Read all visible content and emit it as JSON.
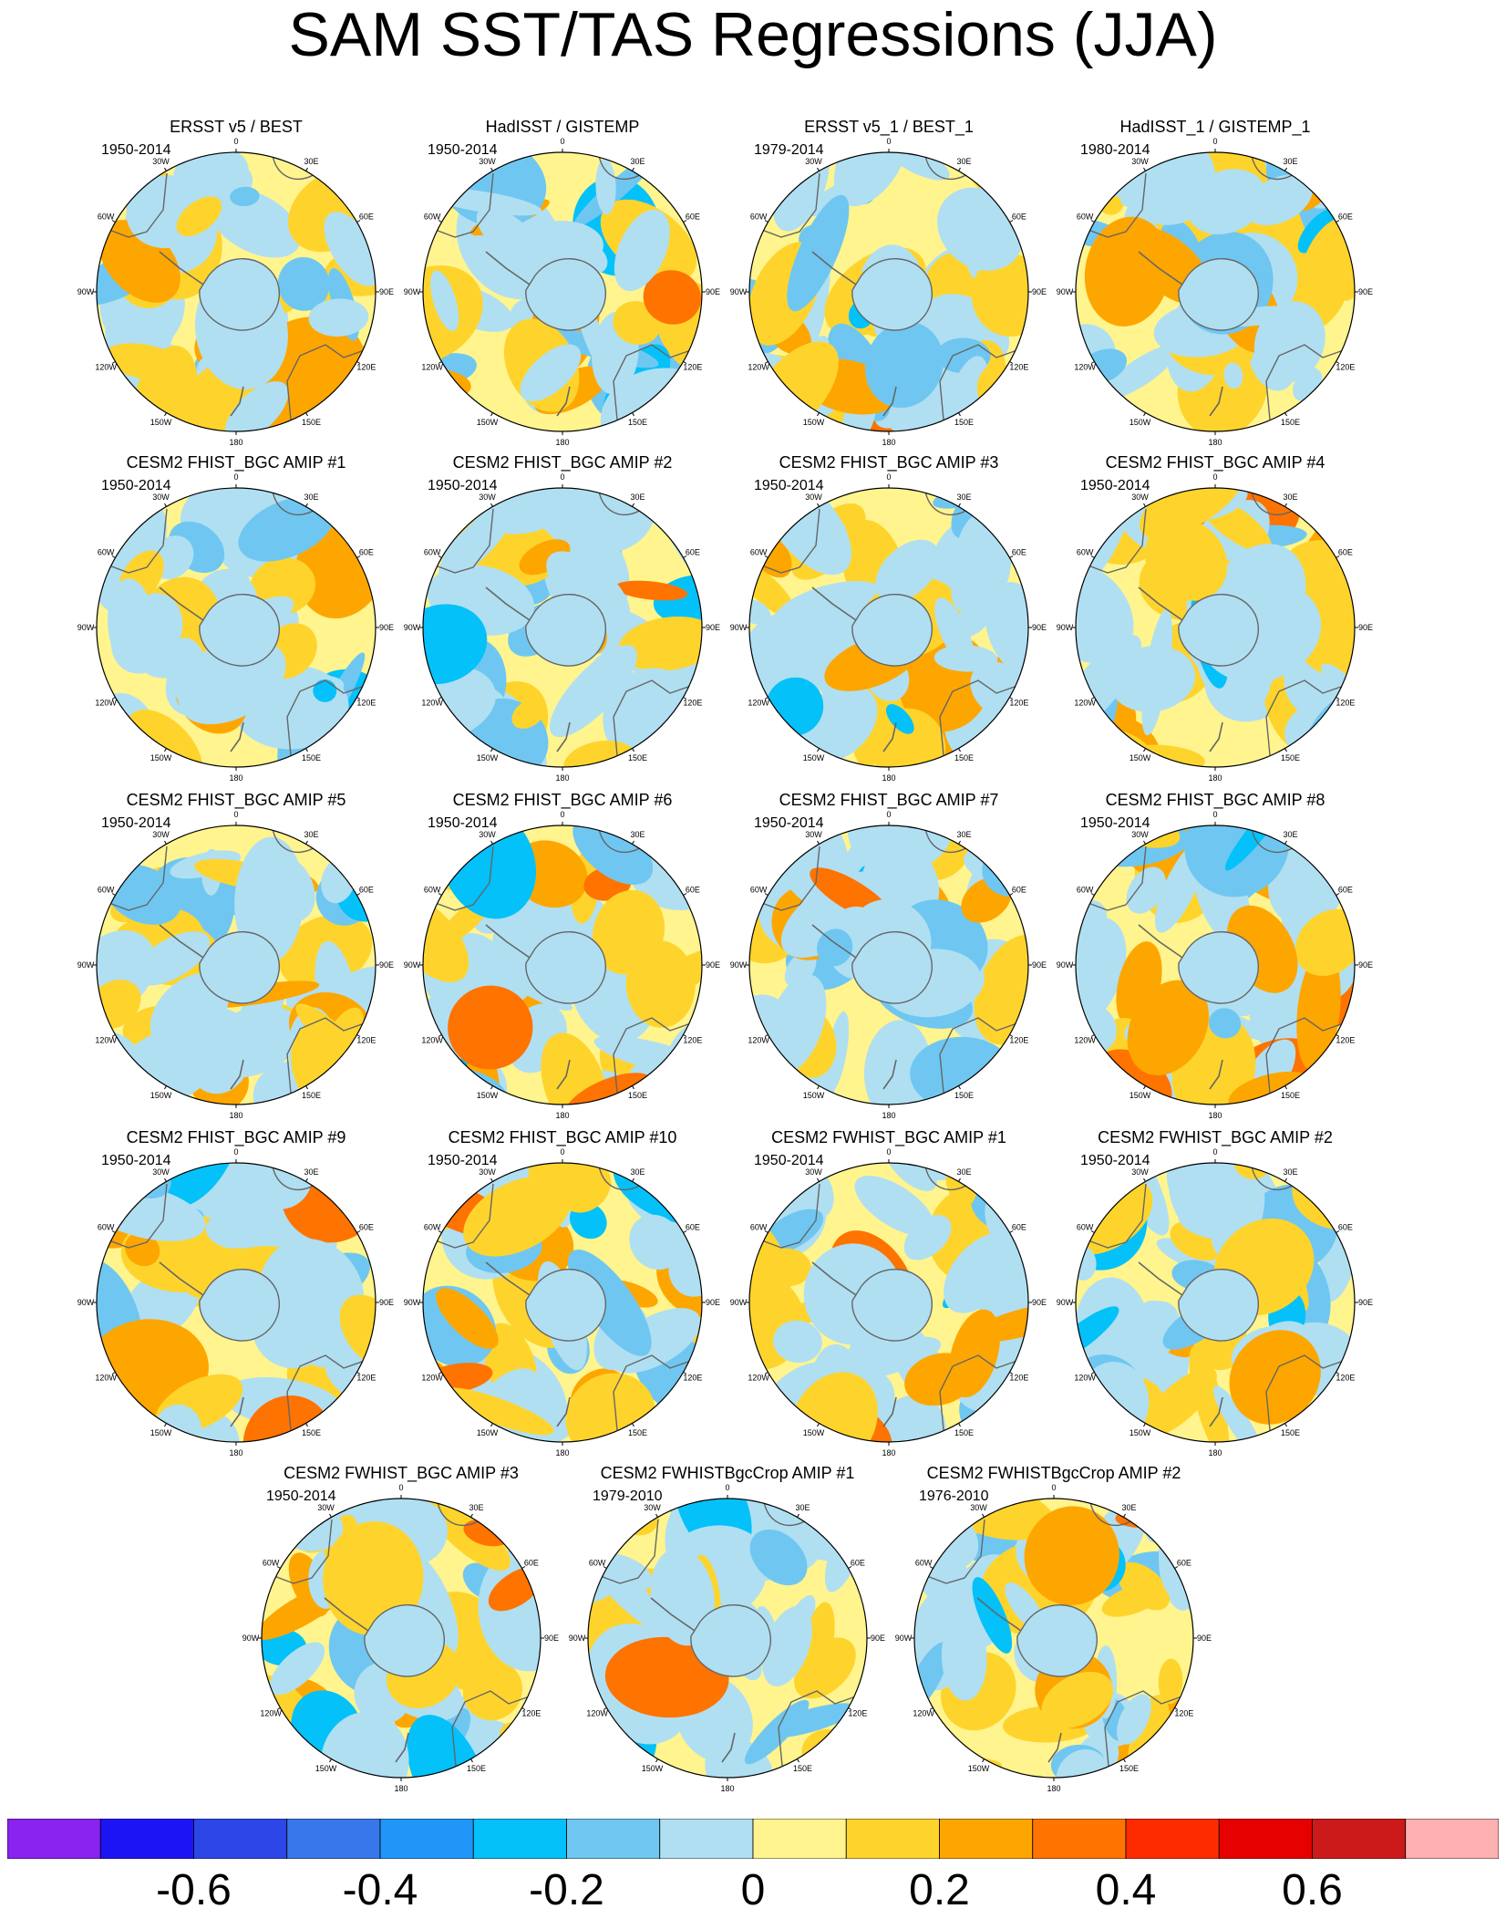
{
  "title": "SAM SST/TAS Regressions (JJA)",
  "longitude_labels": [
    "0",
    "30E",
    "60E",
    "90E",
    "120E",
    "150E",
    "180",
    "150W",
    "120W",
    "90W",
    "60W",
    "30W"
  ],
  "panels": [
    {
      "title": "ERSST v5 / BEST",
      "period": "1950-2014"
    },
    {
      "title": "HadISST / GISTEMP",
      "period": "1950-2014"
    },
    {
      "title": "ERSST v5_1 / BEST_1",
      "period": "1979-2014"
    },
    {
      "title": "HadISST_1 / GISTEMP_1",
      "period": "1980-2014"
    },
    {
      "title": "CESM2 FHIST_BGC AMIP #1",
      "period": "1950-2014"
    },
    {
      "title": "CESM2 FHIST_BGC AMIP #2",
      "period": "1950-2014"
    },
    {
      "title": "CESM2 FHIST_BGC AMIP #3",
      "period": "1950-2014"
    },
    {
      "title": "CESM2 FHIST_BGC AMIP #4",
      "period": "1950-2014"
    },
    {
      "title": "CESM2 FHIST_BGC AMIP #5",
      "period": "1950-2014"
    },
    {
      "title": "CESM2 FHIST_BGC AMIP #6",
      "period": "1950-2014"
    },
    {
      "title": "CESM2 FHIST_BGC AMIP #7",
      "period": "1950-2014"
    },
    {
      "title": "CESM2 FHIST_BGC AMIP #8",
      "period": "1950-2014"
    },
    {
      "title": "CESM2 FHIST_BGC AMIP #9",
      "period": "1950-2014"
    },
    {
      "title": "CESM2 FHIST_BGC AMIP #10",
      "period": "1950-2014"
    },
    {
      "title": "CESM2 FWHIST_BGC AMIP #1",
      "period": "1950-2014"
    },
    {
      "title": "CESM2 FWHIST_BGC AMIP #2",
      "period": "1950-2014"
    },
    {
      "title": "CESM2 FWHIST_BGC AMIP #3",
      "period": "1950-2014"
    },
    {
      "title": "CESM2 FWHISTBgcCrop AMIP #1",
      "period": "1979-2010"
    },
    {
      "title": "CESM2 FWHISTBgcCrop AMIP #2",
      "period": "1976-2010"
    }
  ],
  "chart_data": {
    "type": "heatmap",
    "projection": "south polar stereographic",
    "title": "SAM SST/TAS Regressions (JJA)",
    "colorbar": {
      "orientation": "horizontal",
      "placement": "bottom",
      "colors": [
        "#8a22f0",
        "#1d14f5",
        "#2c46e8",
        "#3877eb",
        "#2196f8",
        "#04c1f9",
        "#6fc7f1",
        "#b0dff2",
        "#fff48e",
        "#fed42c",
        "#fea600",
        "#ff7300",
        "#ff2b00",
        "#e60000",
        "#cc1a1a",
        "#ffb0b0"
      ],
      "tick_labels": [
        "-0.6",
        "-0.4",
        "-0.2",
        "0",
        "0.2",
        "0.4",
        "0.6"
      ],
      "tick_values": [
        -0.6,
        -0.4,
        -0.2,
        0,
        0.2,
        0.4,
        0.6
      ],
      "range": [
        -0.8,
        0.8
      ],
      "interval": 0.1
    },
    "panels": [
      {
        "title": "ERSST v5 / BEST",
        "period": "1950-2014"
      },
      {
        "title": "HadISST / GISTEMP",
        "period": "1950-2014"
      },
      {
        "title": "ERSST v5_1 / BEST_1",
        "period": "1979-2014"
      },
      {
        "title": "HadISST_1 / GISTEMP_1",
        "period": "1980-2014"
      },
      {
        "title": "CESM2 FHIST_BGC AMIP #1",
        "period": "1950-2014"
      },
      {
        "title": "CESM2 FHIST_BGC AMIP #2",
        "period": "1950-2014"
      },
      {
        "title": "CESM2 FHIST_BGC AMIP #3",
        "period": "1950-2014"
      },
      {
        "title": "CESM2 FHIST_BGC AMIP #4",
        "period": "1950-2014"
      },
      {
        "title": "CESM2 FHIST_BGC AMIP #5",
        "period": "1950-2014"
      },
      {
        "title": "CESM2 FHIST_BGC AMIP #6",
        "period": "1950-2014"
      },
      {
        "title": "CESM2 FHIST_BGC AMIP #7",
        "period": "1950-2014"
      },
      {
        "title": "CESM2 FHIST_BGC AMIP #8",
        "period": "1950-2014"
      },
      {
        "title": "CESM2 FHIST_BGC AMIP #9",
        "period": "1950-2014"
      },
      {
        "title": "CESM2 FHIST_BGC AMIP #10",
        "period": "1950-2014"
      },
      {
        "title": "CESM2 FWHIST_BGC AMIP #1",
        "period": "1950-2014"
      },
      {
        "title": "CESM2 FWHIST_BGC AMIP #2",
        "period": "1950-2014"
      },
      {
        "title": "CESM2 FWHIST_BGC AMIP #3",
        "period": "1950-2014"
      },
      {
        "title": "CESM2 FWHISTBgcCrop AMIP #1",
        "period": "1979-2010"
      },
      {
        "title": "CESM2 FWHISTBgcCrop AMIP #2",
        "period": "1976-2010"
      }
    ]
  }
}
